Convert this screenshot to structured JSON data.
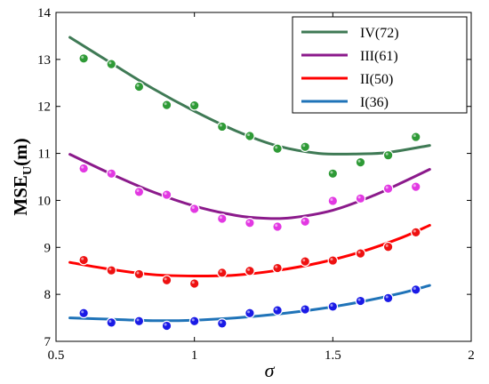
{
  "chart_data": {
    "type": "line",
    "xlabel": "σ",
    "ylabel": "MSE",
    "ylabel_sub": "U",
    "ylabel_suffix": "(m)",
    "xlim": [
      0.5,
      2
    ],
    "ylim": [
      7,
      14
    ],
    "x_ticks": [
      0.5,
      1,
      1.5,
      2
    ],
    "x_tick_labels": [
      "0.5",
      "1",
      "1.5",
      "2"
    ],
    "y_ticks": [
      7,
      8,
      9,
      10,
      11,
      12,
      13,
      14
    ],
    "y_tick_labels": [
      "7",
      "8",
      "9",
      "10",
      "11",
      "12",
      "13",
      "14"
    ],
    "grid": false,
    "legend_position": "top-right",
    "series": [
      {
        "name": "IV(72)",
        "line_color": "#3f7a55",
        "point_color": "#2e9a36",
        "points": [
          [
            0.6,
            13.02
          ],
          [
            0.7,
            12.9
          ],
          [
            0.8,
            12.42
          ],
          [
            0.9,
            12.03
          ],
          [
            1.0,
            12.02
          ],
          [
            1.1,
            11.57
          ],
          [
            1.2,
            11.37
          ],
          [
            1.3,
            11.1
          ],
          [
            1.4,
            11.14
          ],
          [
            1.5,
            10.57
          ],
          [
            1.6,
            10.81
          ],
          [
            1.7,
            10.96
          ],
          [
            1.8,
            11.35
          ]
        ],
        "fit": [
          [
            0.55,
            13.47
          ],
          [
            0.7,
            12.92
          ],
          [
            0.85,
            12.38
          ],
          [
            1.0,
            11.9
          ],
          [
            1.15,
            11.48
          ],
          [
            1.3,
            11.16
          ],
          [
            1.45,
            11.0
          ],
          [
            1.6,
            10.99
          ],
          [
            1.7,
            11.02
          ],
          [
            1.85,
            11.17
          ]
        ]
      },
      {
        "name": "III(61)",
        "line_color": "#8b1a8b",
        "point_color": "#e238e2",
        "points": [
          [
            0.6,
            10.68
          ],
          [
            0.7,
            10.57
          ],
          [
            0.8,
            10.18
          ],
          [
            0.9,
            10.12
          ],
          [
            1.0,
            9.82
          ],
          [
            1.1,
            9.61
          ],
          [
            1.2,
            9.52
          ],
          [
            1.3,
            9.44
          ],
          [
            1.4,
            9.55
          ],
          [
            1.5,
            9.99
          ],
          [
            1.6,
            10.04
          ],
          [
            1.7,
            10.25
          ],
          [
            1.8,
            10.29
          ]
        ],
        "fit": [
          [
            0.55,
            10.98
          ],
          [
            0.7,
            10.56
          ],
          [
            0.85,
            10.18
          ],
          [
            1.0,
            9.88
          ],
          [
            1.15,
            9.68
          ],
          [
            1.25,
            9.62
          ],
          [
            1.35,
            9.63
          ],
          [
            1.5,
            9.79
          ],
          [
            1.65,
            10.11
          ],
          [
            1.75,
            10.38
          ],
          [
            1.85,
            10.66
          ]
        ]
      },
      {
        "name": "II(50)",
        "line_color": "#ff0000",
        "point_color": "#ee1111",
        "points": [
          [
            0.6,
            8.73
          ],
          [
            0.7,
            8.51
          ],
          [
            0.8,
            8.43
          ],
          [
            0.9,
            8.3
          ],
          [
            1.0,
            8.23
          ],
          [
            1.1,
            8.46
          ],
          [
            1.2,
            8.5
          ],
          [
            1.3,
            8.56
          ],
          [
            1.4,
            8.7
          ],
          [
            1.5,
            8.72
          ],
          [
            1.6,
            8.87
          ],
          [
            1.7,
            9.01
          ],
          [
            1.8,
            9.32
          ]
        ],
        "fit": [
          [
            0.55,
            8.68
          ],
          [
            0.7,
            8.53
          ],
          [
            0.85,
            8.42
          ],
          [
            1.0,
            8.39
          ],
          [
            1.15,
            8.41
          ],
          [
            1.3,
            8.51
          ],
          [
            1.45,
            8.67
          ],
          [
            1.6,
            8.9
          ],
          [
            1.75,
            9.21
          ],
          [
            1.85,
            9.47
          ]
        ]
      },
      {
        "name": "I(36)",
        "line_color": "#1f73b8",
        "point_color": "#1a1ae6",
        "points": [
          [
            0.6,
            7.6
          ],
          [
            0.7,
            7.4
          ],
          [
            0.8,
            7.43
          ],
          [
            0.9,
            7.33
          ],
          [
            1.0,
            7.43
          ],
          [
            1.1,
            7.38
          ],
          [
            1.2,
            7.6
          ],
          [
            1.3,
            7.66
          ],
          [
            1.4,
            7.68
          ],
          [
            1.5,
            7.74
          ],
          [
            1.6,
            7.86
          ],
          [
            1.7,
            7.92
          ],
          [
            1.8,
            8.1
          ]
        ],
        "fit": [
          [
            0.55,
            7.5
          ],
          [
            0.7,
            7.47
          ],
          [
            0.85,
            7.44
          ],
          [
            1.0,
            7.45
          ],
          [
            1.15,
            7.5
          ],
          [
            1.3,
            7.58
          ],
          [
            1.45,
            7.69
          ],
          [
            1.6,
            7.84
          ],
          [
            1.75,
            8.03
          ],
          [
            1.85,
            8.19
          ]
        ]
      }
    ]
  }
}
